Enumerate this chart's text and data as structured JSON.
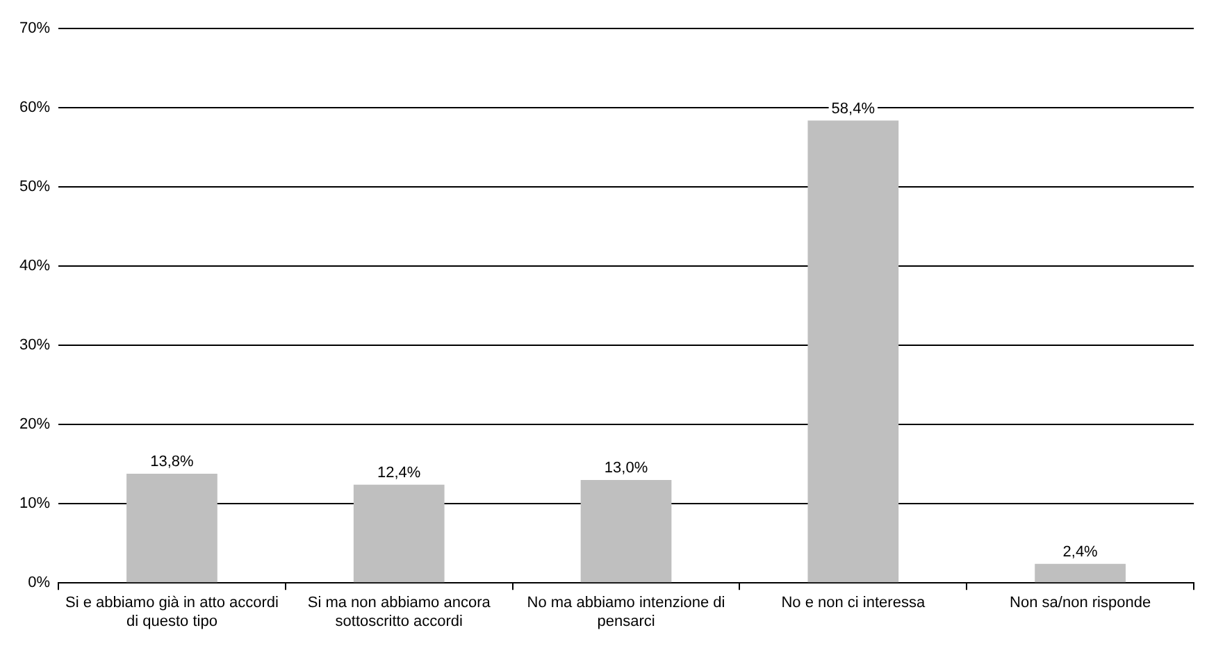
{
  "chart_data": {
    "type": "bar",
    "categories": [
      "Si e abbiamo già in atto accordi di questo tipo",
      "Si ma non abbiamo ancora sottoscritto accordi",
      "No ma abbiamo intenzione di pensarci",
      "No e non ci interessa",
      "Non sa/non risponde"
    ],
    "values": [
      13.8,
      12.4,
      13.0,
      58.4,
      2.4
    ],
    "value_labels": [
      "13,8%",
      "12,4%",
      "13,0%",
      "58,4%",
      "2,4%"
    ],
    "color": "#bfbfbf",
    "ylim": [
      0,
      70
    ],
    "yticks": [
      {
        "value": 0,
        "label": "0%"
      },
      {
        "value": 10,
        "label": "10%"
      },
      {
        "value": 20,
        "label": "20%"
      },
      {
        "value": 30,
        "label": "30%"
      },
      {
        "value": 40,
        "label": "40%"
      },
      {
        "value": 50,
        "label": "50%"
      },
      {
        "value": 60,
        "label": "60%"
      },
      {
        "value": 70,
        "label": "70%"
      }
    ],
    "grid": "y",
    "legend": false
  }
}
